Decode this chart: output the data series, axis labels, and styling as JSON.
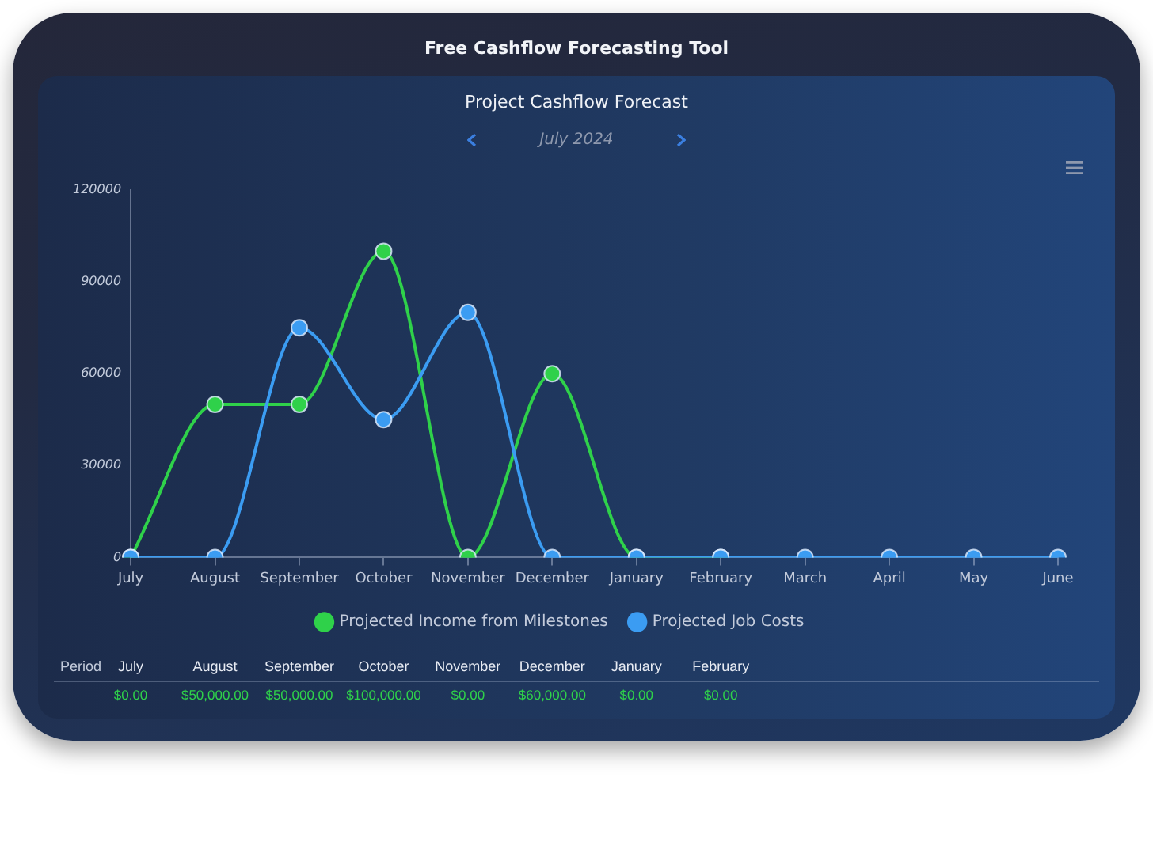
{
  "chart_data": {
    "type": "line",
    "title": "Project Cashflow Forecast",
    "annotations": [
      "Free Cashflow Forecasting Tool",
      "July 2024",
      "Period"
    ],
    "categories": [
      "July",
      "August",
      "September",
      "October",
      "November",
      "December",
      "January",
      "February",
      "March",
      "April",
      "May",
      "June"
    ],
    "series": [
      {
        "name": "Projected Income from Milestones",
        "color": "#2fd14a",
        "values": [
          0,
          50000,
          50000,
          100000,
          0,
          60000,
          0,
          0,
          null,
          null,
          null,
          null
        ],
        "value_labels": [
          "$0.00",
          "$50,000.00",
          "$50,000.00",
          "$100,000.00",
          "$0.00",
          "$60,000.00",
          "$0.00",
          "$0.00",
          null,
          null,
          null,
          null
        ]
      },
      {
        "name": "Projected Job Costs",
        "color": "#3b9cf2",
        "values": [
          0,
          0,
          75000,
          45000,
          80000,
          0,
          0,
          0,
          0,
          0,
          0,
          0
        ]
      }
    ],
    "ylim": [
      0,
      120000
    ],
    "yticks": [
      0,
      30000,
      60000,
      90000,
      120000
    ],
    "grid": false,
    "legend": "bottom",
    "marker": "circle"
  }
}
